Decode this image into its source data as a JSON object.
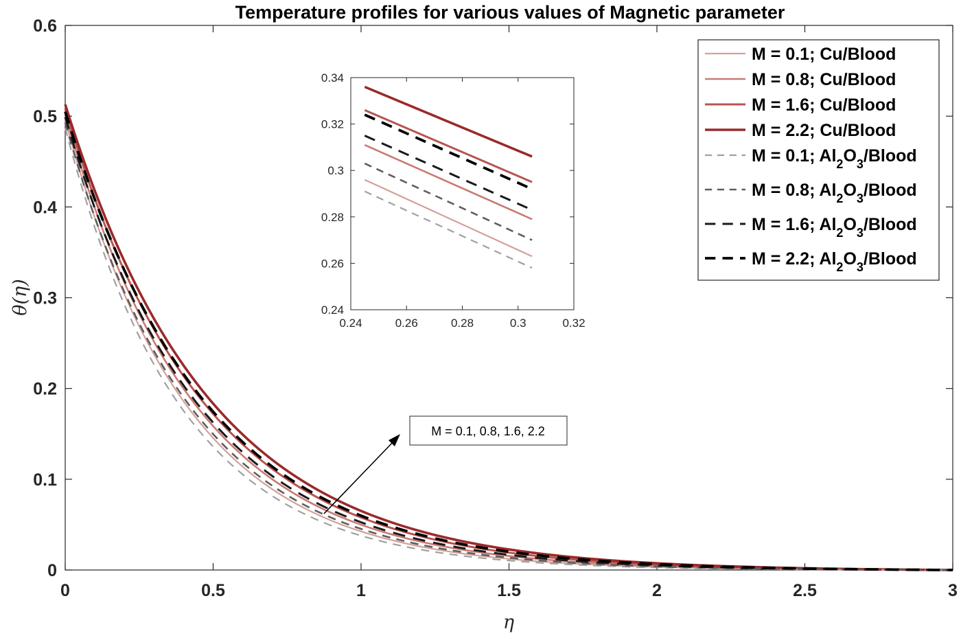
{
  "chart_data": {
    "type": "line",
    "title": "Temperature profiles for various values of Magnetic parameter",
    "xlabel": "η",
    "ylabel": "θ(η)",
    "xlim": [
      0,
      3
    ],
    "ylim": [
      0,
      0.6
    ],
    "xticks": [
      "0",
      "0.5",
      "1",
      "1.5",
      "2",
      "2.5",
      "3"
    ],
    "yticks": [
      "0",
      "0.1",
      "0.2",
      "0.3",
      "0.4",
      "0.5",
      "0.6"
    ],
    "model": "theta(eta) = a * (exp(-k*eta) - exp(-3k)) / (1 - exp(-3k))",
    "series": [
      {
        "name": "M = 0.1; Cu/Blood",
        "label_main": "M = 0.1; Cu/Blood",
        "label_sub": "",
        "label_tail": "",
        "color": "#d4a09a",
        "style": "solid",
        "width": 2.2,
        "a": 0.496,
        "k": 2.45,
        "inset_start": 0.296,
        "inset_end": 0.263
      },
      {
        "name": "M = 0.8; Cu/Blood",
        "label_main": "M = 0.8; Cu/Blood",
        "label_sub": "",
        "label_tail": "",
        "color": "#c97a74",
        "style": "solid",
        "width": 2.6,
        "a": 0.502,
        "k": 2.3,
        "inset_start": 0.311,
        "inset_end": 0.279
      },
      {
        "name": "M = 1.6; Cu/Blood",
        "label_main": "M = 1.6; Cu/Blood",
        "label_sub": "",
        "label_tail": "",
        "color": "#b85450",
        "style": "solid",
        "width": 3.0,
        "a": 0.508,
        "k": 2.16,
        "inset_start": 0.326,
        "inset_end": 0.295
      },
      {
        "name": "M = 2.2; Cu/Blood",
        "label_main": "M = 2.2; Cu/Blood",
        "label_sub": "",
        "label_tail": "",
        "color": "#9b2a2a",
        "style": "solid",
        "width": 3.6,
        "a": 0.513,
        "k": 2.05,
        "inset_start": 0.336,
        "inset_end": 0.306
      },
      {
        "name": "M = 0.1; Al2O3/Blood",
        "label_main": "M = 0.1; Al",
        "label_sub": "2",
        "label_mid": "O",
        "label_sub2": "3",
        "label_tail": "/Blood",
        "color": "#a0a0a0",
        "style": "dashed",
        "width": 2.2,
        "a": 0.487,
        "k": 2.55,
        "inset_start": 0.291,
        "inset_end": 0.258
      },
      {
        "name": "M = 0.8; Al2O3/Blood",
        "label_main": "M = 0.8; Al",
        "label_sub": "2",
        "label_mid": "O",
        "label_sub2": "3",
        "label_tail": "/Blood",
        "color": "#5e5e5e",
        "style": "dashed",
        "width": 2.6,
        "a": 0.493,
        "k": 2.38,
        "inset_start": 0.303,
        "inset_end": 0.27
      },
      {
        "name": "M = 1.6; Al2O3/Blood",
        "label_main": "M = 1.6; Al",
        "label_sub": "2",
        "label_mid": "O",
        "label_sub2": "3",
        "label_tail": "/Blood",
        "color": "#1a1a1a",
        "style": "dashed",
        "width": 3.0,
        "a": 0.499,
        "k": 2.24,
        "inset_start": 0.315,
        "inset_end": 0.283
      },
      {
        "name": "M = 2.2; Al2O3/Blood",
        "label_main": "M = 2.2; Al",
        "label_sub": "2",
        "label_mid": "O",
        "label_sub2": "3",
        "label_tail": "/Blood",
        "color": "#000000",
        "style": "dashed",
        "width": 3.8,
        "a": 0.505,
        "k": 2.12,
        "inset_start": 0.324,
        "inset_end": 0.292
      }
    ],
    "annotation": {
      "text": "M = 0.1, 0.8, 1.6, 2.2"
    },
    "inset": {
      "xlim": [
        0.24,
        0.32
      ],
      "ylim": [
        0.24,
        0.34
      ],
      "xticks": [
        "0.24",
        "0.26",
        "0.28",
        "0.3",
        "0.32"
      ],
      "yticks": [
        "0.24",
        "0.26",
        "0.28",
        "0.3",
        "0.32",
        "0.34"
      ],
      "x_range": [
        0.245,
        0.305
      ]
    }
  }
}
